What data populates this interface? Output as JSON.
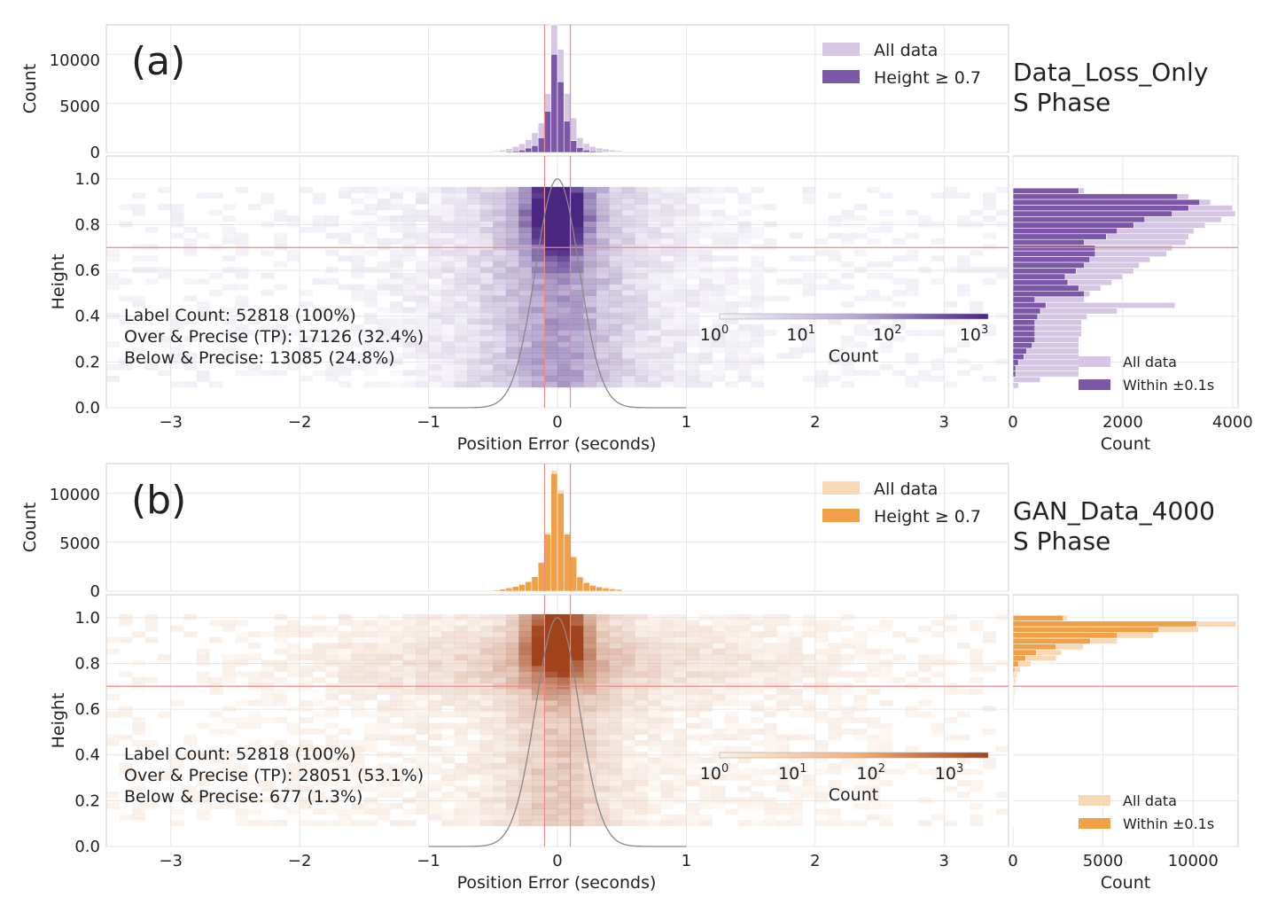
{
  "panels": [
    {
      "panel_label": "(a)",
      "model_name": "Data_Loss_Only",
      "phase_name": "S Phase",
      "colors": {
        "light": "#d5c6e3",
        "dark": "#7c57a8",
        "cmap_low": "#f5f2f9",
        "cmap_high": "#4a2582",
        "edge": "#ffffff"
      },
      "stats": [
        "Label Count: 52818 (100%)",
        "Over & Precise (TP): 17126 (32.4%)",
        "Below & Precise: 13085 (24.8%)"
      ],
      "colorbar": {
        "label": "Count",
        "ticks": [
          "10",
          "10",
          "10",
          "10"
        ],
        "exponents": [
          "0",
          "1",
          "2",
          "3"
        ]
      },
      "chart_data": [
        {
          "type": "bar",
          "role": "top-histogram",
          "title": "",
          "xlabel": "",
          "ylabel": "Count",
          "xlim": [
            -3.5,
            3.5
          ],
          "ylim": [
            0,
            13000
          ],
          "yticks": [
            0,
            5000,
            10000
          ],
          "bin_width": 0.05,
          "bin_centers": [
            -0.475,
            -0.425,
            -0.375,
            -0.325,
            -0.275,
            -0.225,
            -0.175,
            -0.125,
            -0.075,
            -0.025,
            0.025,
            0.075,
            0.125,
            0.175,
            0.225,
            0.275,
            0.325,
            0.375,
            0.425,
            0.475
          ],
          "series": [
            {
              "name": "All data",
              "values": [
                150,
                250,
                400,
                600,
                900,
                1300,
                2000,
                3000,
                6000,
                13000,
                10500,
                6000,
                3500,
                1500,
                900,
                600,
                450,
                350,
                250,
                180
              ]
            },
            {
              "name": "Height ≥ 0.7",
              "values": [
                30,
                60,
                100,
                150,
                250,
                450,
                700,
                1500,
                4200,
                10000,
                7200,
                3200,
                1200,
                500,
                250,
                150,
                100,
                70,
                50,
                30
              ]
            }
          ],
          "legend": [
            "All data",
            "Height ≥ 0.7"
          ],
          "legend_position": "top-right",
          "vlines": [
            -0.1,
            0.1
          ]
        },
        {
          "type": "heatmap",
          "role": "main-2d-histogram",
          "xlabel": "Position Error (seconds)",
          "ylabel": "Height",
          "xlim": [
            -3.5,
            3.5
          ],
          "ylim": [
            0,
            1.1
          ],
          "xticks": [
            -3,
            -2,
            -1,
            0,
            1,
            2,
            3
          ],
          "xtick_labels": [
            "−3",
            "−2",
            "−1",
            "0",
            "1",
            "2",
            "3"
          ],
          "yticks": [
            0,
            0.2,
            0.4,
            0.6,
            0.8,
            1.0
          ],
          "ytick_labels": [
            "0.0",
            "0.2",
            "0.4",
            "0.6",
            "0.8",
            "1.0"
          ],
          "count_range_log10": [
            0,
            3.3
          ],
          "height_range": [
            0.09,
            0.96
          ],
          "core_height": 0.85,
          "spread_seconds": 1.0,
          "threshold_hline": 0.7,
          "vlines": [
            -0.1,
            0.1
          ],
          "gaussian_reference": {
            "mu": 0,
            "sigma": 0.17,
            "amplitude": 1.0
          }
        },
        {
          "type": "bar",
          "role": "right-histogram",
          "orientation": "horizontal",
          "xlabel": "Count",
          "xlim": [
            0,
            4100
          ],
          "xticks": [
            0,
            2000,
            4000
          ],
          "bin_height": 0.025,
          "bin_centers": [
            0.9475,
            0.9225,
            0.8975,
            0.8725,
            0.8475,
            0.8225,
            0.7975,
            0.7725,
            0.7475,
            0.7225,
            0.6975,
            0.6725,
            0.6475,
            0.6225,
            0.5975,
            0.5725,
            0.5475,
            0.5225,
            0.4975,
            0.4725,
            0.4475,
            0.4225,
            0.3975,
            0.3725,
            0.3475,
            0.3225,
            0.2975,
            0.2725,
            0.2475,
            0.2225,
            0.1975,
            0.1725,
            0.1475,
            0.1225,
            0.0975
          ],
          "series": [
            {
              "name": "All data",
              "values": [
                1300,
                3200,
                3600,
                4000,
                4050,
                3800,
                3500,
                3300,
                3200,
                3150,
                2900,
                2800,
                2500,
                2300,
                2200,
                2000,
                1800,
                1600,
                1400,
                1300,
                2950,
                1900,
                1350,
                1250,
                1250,
                1250,
                1200,
                1200,
                1200,
                1200,
                1200,
                1200,
                1200,
                500,
                100
              ]
            },
            {
              "name": "Within ±0.1s",
              "values": [
                1200,
                3000,
                3400,
                3200,
                2900,
                2400,
                2200,
                1900,
                1700,
                1300,
                1500,
                1500,
                1400,
                1300,
                1150,
                950,
                1000,
                1200,
                1300,
                400,
                600,
                500,
                450,
                400,
                400,
                400,
                400,
                350,
                250,
                200,
                100,
                50,
                50,
                10,
                0
              ]
            }
          ],
          "legend": [
            "All data",
            "Within ±0.1s"
          ],
          "legend_position": "bottom-right",
          "threshold_hline": 0.7
        }
      ]
    },
    {
      "panel_label": "(b)",
      "model_name": "GAN_Data_4000",
      "phase_name": "S Phase",
      "colors": {
        "light": "#f9d9b5",
        "dark": "#f0a046",
        "cmap_low": "#fdf0e3",
        "cmap_high": "#a0431b",
        "edge": "#ffffff"
      },
      "stats": [
        "Label Count: 52818 (100%)",
        "Over & Precise (TP): 28051 (53.1%)",
        "Below & Precise: 677 (1.3%)"
      ],
      "colorbar": {
        "label": "Count",
        "ticks": [
          "10",
          "10",
          "10",
          "10"
        ],
        "exponents": [
          "0",
          "1",
          "2",
          "3"
        ]
      },
      "chart_data": [
        {
          "type": "bar",
          "role": "top-histogram",
          "title": "",
          "xlabel": "",
          "ylabel": "Count",
          "xlim": [
            -3.5,
            3.5
          ],
          "ylim": [
            0,
            13000
          ],
          "yticks": [
            0,
            5000,
            10000
          ],
          "bin_width": 0.05,
          "bin_centers": [
            -0.475,
            -0.425,
            -0.375,
            -0.325,
            -0.275,
            -0.225,
            -0.175,
            -0.125,
            -0.075,
            -0.025,
            0.025,
            0.075,
            0.125,
            0.175,
            0.225,
            0.275,
            0.325,
            0.375,
            0.425,
            0.475
          ],
          "series": [
            {
              "name": "All data",
              "values": [
                120,
                220,
                350,
                500,
                700,
                1000,
                1500,
                3000,
                6000,
                12300,
                10300,
                6000,
                3600,
                1500,
                900,
                600,
                450,
                350,
                250,
                180
              ]
            },
            {
              "name": "Height ≥ 0.7",
              "values": [
                110,
                210,
                340,
                480,
                680,
                980,
                1480,
                2900,
                5800,
                12000,
                10000,
                5800,
                3500,
                1450,
                880,
                590,
                430,
                330,
                240,
                170
              ]
            }
          ],
          "legend": [
            "All data",
            "Height ≥ 0.7"
          ],
          "legend_position": "top-right",
          "vlines": [
            -0.1,
            0.1
          ]
        },
        {
          "type": "heatmap",
          "role": "main-2d-histogram",
          "xlabel": "Position Error (seconds)",
          "ylabel": "Height",
          "xlim": [
            -3.5,
            3.5
          ],
          "ylim": [
            0,
            1.1
          ],
          "xticks": [
            -3,
            -2,
            -1,
            0,
            1,
            2,
            3
          ],
          "xtick_labels": [
            "−3",
            "−2",
            "−1",
            "0",
            "1",
            "2",
            "3"
          ],
          "yticks": [
            0,
            0.2,
            0.4,
            0.6,
            0.8,
            1.0
          ],
          "ytick_labels": [
            "0.0",
            "0.2",
            "0.4",
            "0.6",
            "0.8",
            "1.0"
          ],
          "count_range_log10": [
            0,
            3.6
          ],
          "height_range": [
            0.09,
            1.0
          ],
          "core_height": 0.92,
          "spread_seconds": 1.6,
          "threshold_hline": 0.7,
          "vlines": [
            -0.1,
            0.1
          ],
          "gaussian_reference": {
            "mu": 0,
            "sigma": 0.17,
            "amplitude": 1.0
          }
        },
        {
          "type": "bar",
          "role": "right-histogram",
          "orientation": "horizontal",
          "xlabel": "Count",
          "xlim": [
            0,
            12500
          ],
          "xticks": [
            0,
            5000,
            10000
          ],
          "bin_height": 0.025,
          "bin_centers": [
            0.9975,
            0.9725,
            0.9475,
            0.9225,
            0.8975,
            0.8725,
            0.8475,
            0.8225,
            0.7975,
            0.7725,
            0.7475,
            0.7225,
            0.6975,
            0.6725,
            0.6475,
            0.6225,
            0.5975,
            0.5725,
            0.5475,
            0.5225,
            0.4975,
            0.4725,
            0.4475,
            0.4225,
            0.3975,
            0.3725,
            0.3475,
            0.3225,
            0.2975,
            0.2725,
            0.2475,
            0.2225,
            0.1975,
            0.1725,
            0.1475,
            0.1225,
            0.0975
          ],
          "series": [
            {
              "name": "All data",
              "values": [
                3000,
                12400,
                10300,
                7800,
                5800,
                3900,
                2700,
                2400,
                1000,
                400,
                200,
                150,
                100,
                100,
                80,
                60,
                50,
                40,
                30,
                30,
                30,
                30,
                20,
                20,
                20,
                20,
                20,
                20,
                20,
                20,
                20,
                20,
                20,
                20,
                20,
                20,
                20
              ]
            },
            {
              "name": "Within ±0.1s",
              "values": [
                2800,
                10200,
                8100,
                5800,
                4300,
                2400,
                1300,
                700,
                300,
                100,
                50,
                20,
                10,
                10,
                10,
                10,
                10,
                10,
                5,
                5,
                5,
                5,
                5,
                5,
                5,
                5,
                5,
                5,
                5,
                5,
                5,
                5,
                5,
                5,
                5,
                5,
                5
              ]
            }
          ],
          "legend": [
            "All data",
            "Within ±0.1s"
          ],
          "legend_position": "bottom-right",
          "threshold_hline": 0.7
        }
      ]
    }
  ]
}
